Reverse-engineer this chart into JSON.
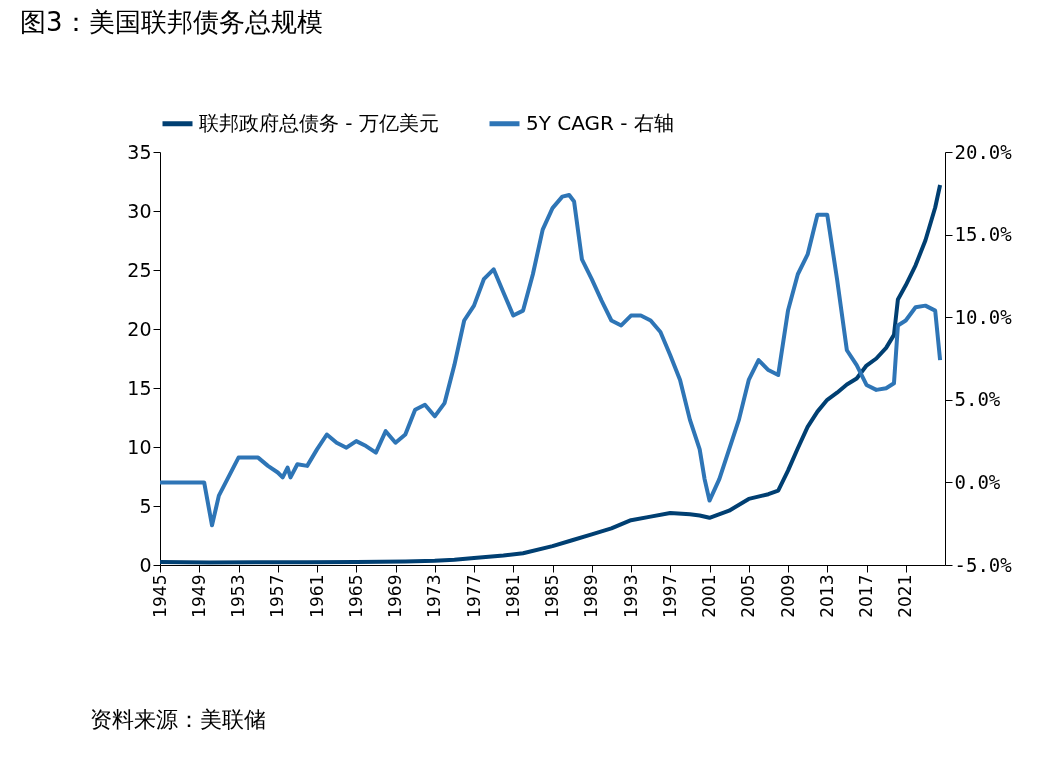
{
  "chart_data": {
    "type": "line",
    "title": "图3：美国联邦债务总规模",
    "annotations": [
      "资料来源：美联储"
    ],
    "xlim": [
      1945,
      2025
    ],
    "xticks": [
      1945,
      1949,
      1953,
      1957,
      1961,
      1965,
      1969,
      1973,
      1977,
      1981,
      1985,
      1989,
      1993,
      1997,
      2001,
      2005,
      2009,
      2013,
      2017,
      2021
    ],
    "ylim": [
      0,
      35
    ],
    "yticks": [
      0,
      5,
      10,
      15,
      20,
      25,
      30,
      35
    ],
    "y2lim": [
      -5,
      20
    ],
    "y2ticks": [
      {
        "value": -5,
        "label": "-5.0%"
      },
      {
        "value": 0,
        "label": "0.0%"
      },
      {
        "value": 5,
        "label": "5.0%"
      },
      {
        "value": 10,
        "label": "10.0%"
      },
      {
        "value": 15,
        "label": "15.0%"
      },
      {
        "value": 20,
        "label": "20.0%"
      }
    ],
    "legend": "top",
    "grid": false,
    "series": [
      {
        "name": "联邦政府总债务 - 万亿美元",
        "color": "#003f72",
        "x": [
          1945,
          1950,
          1955,
          1960,
          1965,
          1970,
          1973,
          1975,
          1977,
          1980,
          1982,
          1985,
          1987,
          1989,
          1991,
          1993,
          1995,
          1997,
          1999,
          2000,
          2001,
          2003,
          2005,
          2007,
          2008,
          2009,
          2010,
          2011,
          2012,
          2013,
          2014,
          2015,
          2016,
          2017,
          2018,
          2019,
          2019.8,
          2020.2,
          2021,
          2022,
          2023,
          2024,
          2024.5
        ],
        "values": [
          0.25,
          0.22,
          0.23,
          0.24,
          0.26,
          0.3,
          0.35,
          0.45,
          0.6,
          0.8,
          1.0,
          1.6,
          2.1,
          2.6,
          3.1,
          3.8,
          4.1,
          4.4,
          4.3,
          4.2,
          4.0,
          4.6,
          5.6,
          6.0,
          6.3,
          8.0,
          9.9,
          11.7,
          13.0,
          14.0,
          14.6,
          15.3,
          15.8,
          16.9,
          17.5,
          18.4,
          19.5,
          22.5,
          23.7,
          25.4,
          27.5,
          30.3,
          32.2
        ]
      },
      {
        "name": "5Y CAGR - 右轴",
        "color": "#2e75b6",
        "axis": "y2",
        "x": [
          1945,
          1949.5,
          1950.3,
          1951,
          1953,
          1955,
          1956,
          1957,
          1957.5,
          1958,
          1958.3,
          1959,
          1960,
          1961,
          1962,
          1963,
          1964,
          1965,
          1966,
          1967,
          1968,
          1969,
          1970,
          1971,
          1972,
          1973,
          1974,
          1975,
          1976,
          1977,
          1978,
          1979,
          1980,
          1981,
          1982,
          1983,
          1984,
          1985,
          1986,
          1986.7,
          1987.2,
          1988,
          1989,
          1990,
          1991,
          1992,
          1993,
          1994,
          1995,
          1996,
          1997,
          1998,
          1999,
          2000,
          2000.5,
          2001,
          2002,
          2003,
          2004,
          2005,
          2006,
          2007,
          2008,
          2009,
          2010,
          2011,
          2012,
          2013,
          2014,
          2015,
          2016,
          2017,
          2018,
          2019,
          2019.8,
          2020.2,
          2021,
          2022,
          2023,
          2024,
          2024.5
        ],
        "values": [
          0.0,
          0.0,
          -2.6,
          -0.8,
          1.5,
          1.5,
          1.0,
          0.6,
          0.3,
          0.9,
          0.3,
          1.1,
          1.0,
          2.0,
          2.9,
          2.4,
          2.1,
          2.5,
          2.2,
          1.8,
          3.1,
          2.4,
          2.9,
          4.4,
          4.7,
          4.0,
          4.8,
          7.1,
          9.8,
          10.7,
          12.3,
          12.9,
          11.5,
          10.1,
          10.4,
          12.6,
          15.3,
          16.6,
          17.3,
          17.4,
          17.0,
          13.5,
          12.3,
          11.0,
          9.8,
          9.5,
          10.1,
          10.1,
          9.8,
          9.1,
          7.7,
          6.2,
          3.8,
          2.0,
          0.2,
          -1.1,
          0.2,
          2.0,
          3.8,
          6.2,
          7.4,
          6.8,
          6.5,
          10.4,
          12.6,
          13.8,
          16.2,
          16.2,
          12.3,
          8.0,
          7.1,
          5.9,
          5.6,
          5.7,
          6.0,
          9.5,
          9.8,
          10.6,
          10.7,
          10.4,
          7.4
        ]
      }
    ]
  }
}
